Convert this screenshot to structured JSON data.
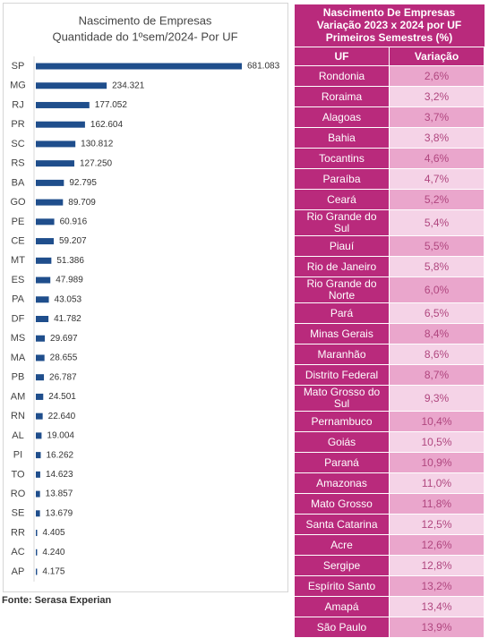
{
  "chart_data": {
    "type": "bar",
    "orientation": "horizontal",
    "title": "Nascimento de Empresas",
    "subtitle": "Quantidade do 1ºsem/2024- Por UF",
    "color": "#1f4e8c",
    "categories": [
      "SP",
      "MG",
      "RJ",
      "PR",
      "SC",
      "RS",
      "BA",
      "GO",
      "PE",
      "CE",
      "MT",
      "ES",
      "PA",
      "DF",
      "MS",
      "MA",
      "PB",
      "AM",
      "RN",
      "AL",
      "PI",
      "TO",
      "RO",
      "SE",
      "RR",
      "AC",
      "AP"
    ],
    "values": [
      681083,
      234321,
      177052,
      162604,
      130812,
      127250,
      92795,
      89709,
      60916,
      59207,
      51386,
      47989,
      43053,
      41782,
      29697,
      28655,
      26787,
      24501,
      22640,
      19004,
      16262,
      14623,
      13857,
      13679,
      4405,
      4240,
      4175
    ],
    "value_labels": [
      "681.083",
      "234.321",
      "177.052",
      "162.604",
      "130.812",
      "127.250",
      "92.795",
      "89.709",
      "60.916",
      "59.207",
      "51.386",
      "47.989",
      "43.053",
      "41.782",
      "29.697",
      "28.655",
      "26.787",
      "24.501",
      "22.640",
      "19.004",
      "16.262",
      "14.623",
      "13.857",
      "13.679",
      "4.405",
      "4.240",
      "4.175"
    ]
  },
  "table": {
    "title": [
      "Nascimento De Empresas",
      "Variação 2023 x 2024 por UF",
      "Primeiros Semestres (%)"
    ],
    "header": [
      "UF",
      "Variação"
    ],
    "rows": [
      [
        "Rondonia",
        "2,6%"
      ],
      [
        "Roraima",
        "3,2%"
      ],
      [
        "Alagoas",
        "3,7%"
      ],
      [
        "Bahia",
        "3,8%"
      ],
      [
        "Tocantins",
        "4,6%"
      ],
      [
        "Paraíba",
        "4,7%"
      ],
      [
        "Ceará",
        "5,2%"
      ],
      [
        "Rio Grande do Sul",
        "5,4%"
      ],
      [
        "Piauí",
        "5,5%"
      ],
      [
        "Rio de Janeiro",
        "5,8%"
      ],
      [
        "Rio Grande do Norte",
        "6,0%"
      ],
      [
        "Pará",
        "6,5%"
      ],
      [
        "Minas Gerais",
        "8,4%"
      ],
      [
        "Maranhão",
        "8,6%"
      ],
      [
        "Distrito Federal",
        "8,7%"
      ],
      [
        "Mato Grosso do Sul",
        "9,3%"
      ],
      [
        "Pernambuco",
        "10,4%"
      ],
      [
        "Goiás",
        "10,5%"
      ],
      [
        "Paraná",
        "10,9%"
      ],
      [
        "Amazonas",
        "11,0%"
      ],
      [
        "Mato Grosso",
        "11,8%"
      ],
      [
        "Santa Catarina",
        "12,5%"
      ],
      [
        "Acre",
        "12,6%"
      ],
      [
        "Sergipe",
        "12,8%"
      ],
      [
        "Espírito Santo",
        "13,2%"
      ],
      [
        "Amapá",
        "13,4%"
      ],
      [
        "São Paulo",
        "13,9%"
      ]
    ]
  },
  "source": "Fonte: Serasa Experian"
}
